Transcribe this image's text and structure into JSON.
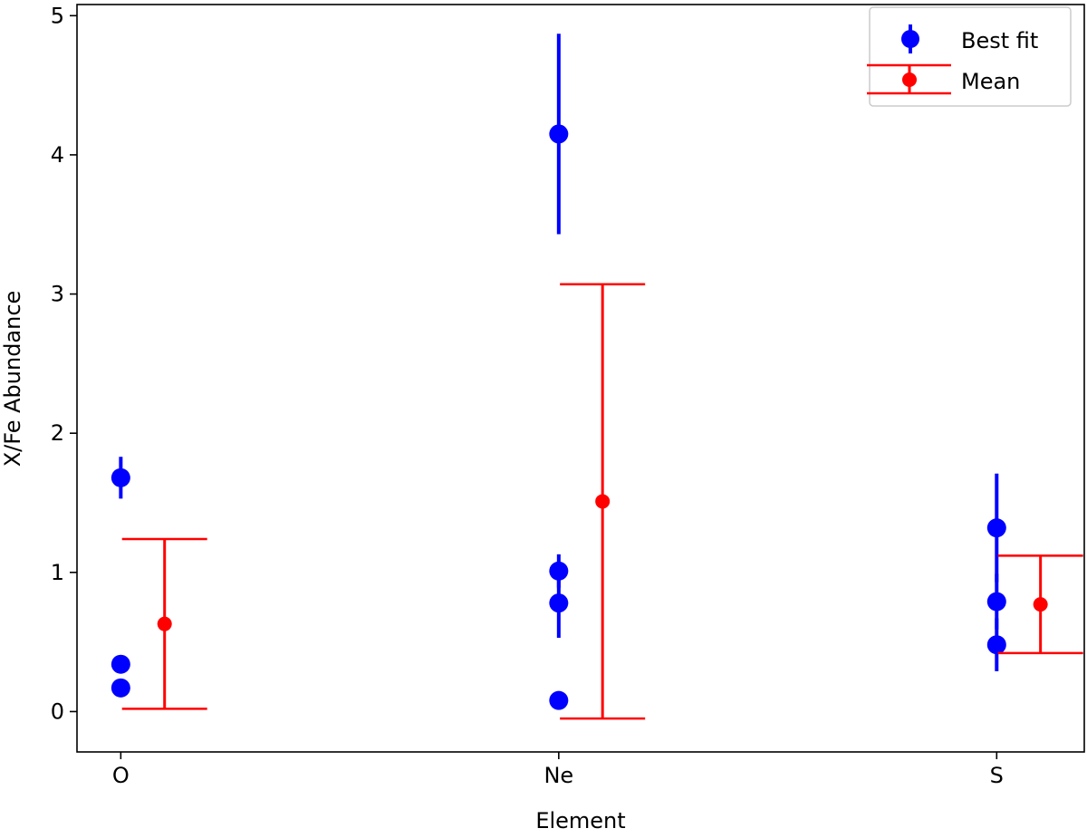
{
  "chart_data": {
    "type": "scatter",
    "title": "",
    "xlabel": "Element",
    "ylabel": "X/Fe Abundance",
    "categories": [
      "O",
      "Ne",
      "S"
    ],
    "xlim": [
      -0.1,
      2.2
    ],
    "ylim": [
      -0.29,
      5.08
    ],
    "yticks": [
      0,
      1,
      2,
      3,
      4,
      5
    ],
    "grid": false,
    "legend": {
      "placement": "top-right",
      "entries": [
        "Best fit",
        "Mean"
      ]
    },
    "series": [
      {
        "name": "Best fit",
        "color": "#0000ff",
        "points": [
          {
            "category": "O",
            "y": 1.68,
            "err": 0.15
          },
          {
            "category": "O",
            "y": 0.34,
            "err": 0
          },
          {
            "category": "O",
            "y": 0.17,
            "err": 0
          },
          {
            "category": "Ne",
            "y": 4.15,
            "err": 0.72
          },
          {
            "category": "Ne",
            "y": 1.01,
            "err": 0.12
          },
          {
            "category": "Ne",
            "y": 0.78,
            "err": 0.25
          },
          {
            "category": "Ne",
            "y": 0.08,
            "err": 0
          },
          {
            "category": "S",
            "y": 1.32,
            "err": 0.39
          },
          {
            "category": "S",
            "y": 0.79,
            "err": 0.2
          },
          {
            "category": "S",
            "y": 0.48,
            "err": 0.19
          }
        ]
      },
      {
        "name": "Mean",
        "color": "#ff0000",
        "offset": 0.1,
        "points": [
          {
            "category": "O",
            "y": 0.63,
            "err": 0.61
          },
          {
            "category": "Ne",
            "y": 1.51,
            "err": 1.56
          },
          {
            "category": "S",
            "y": 0.77,
            "err": 0.35
          }
        ]
      }
    ]
  }
}
